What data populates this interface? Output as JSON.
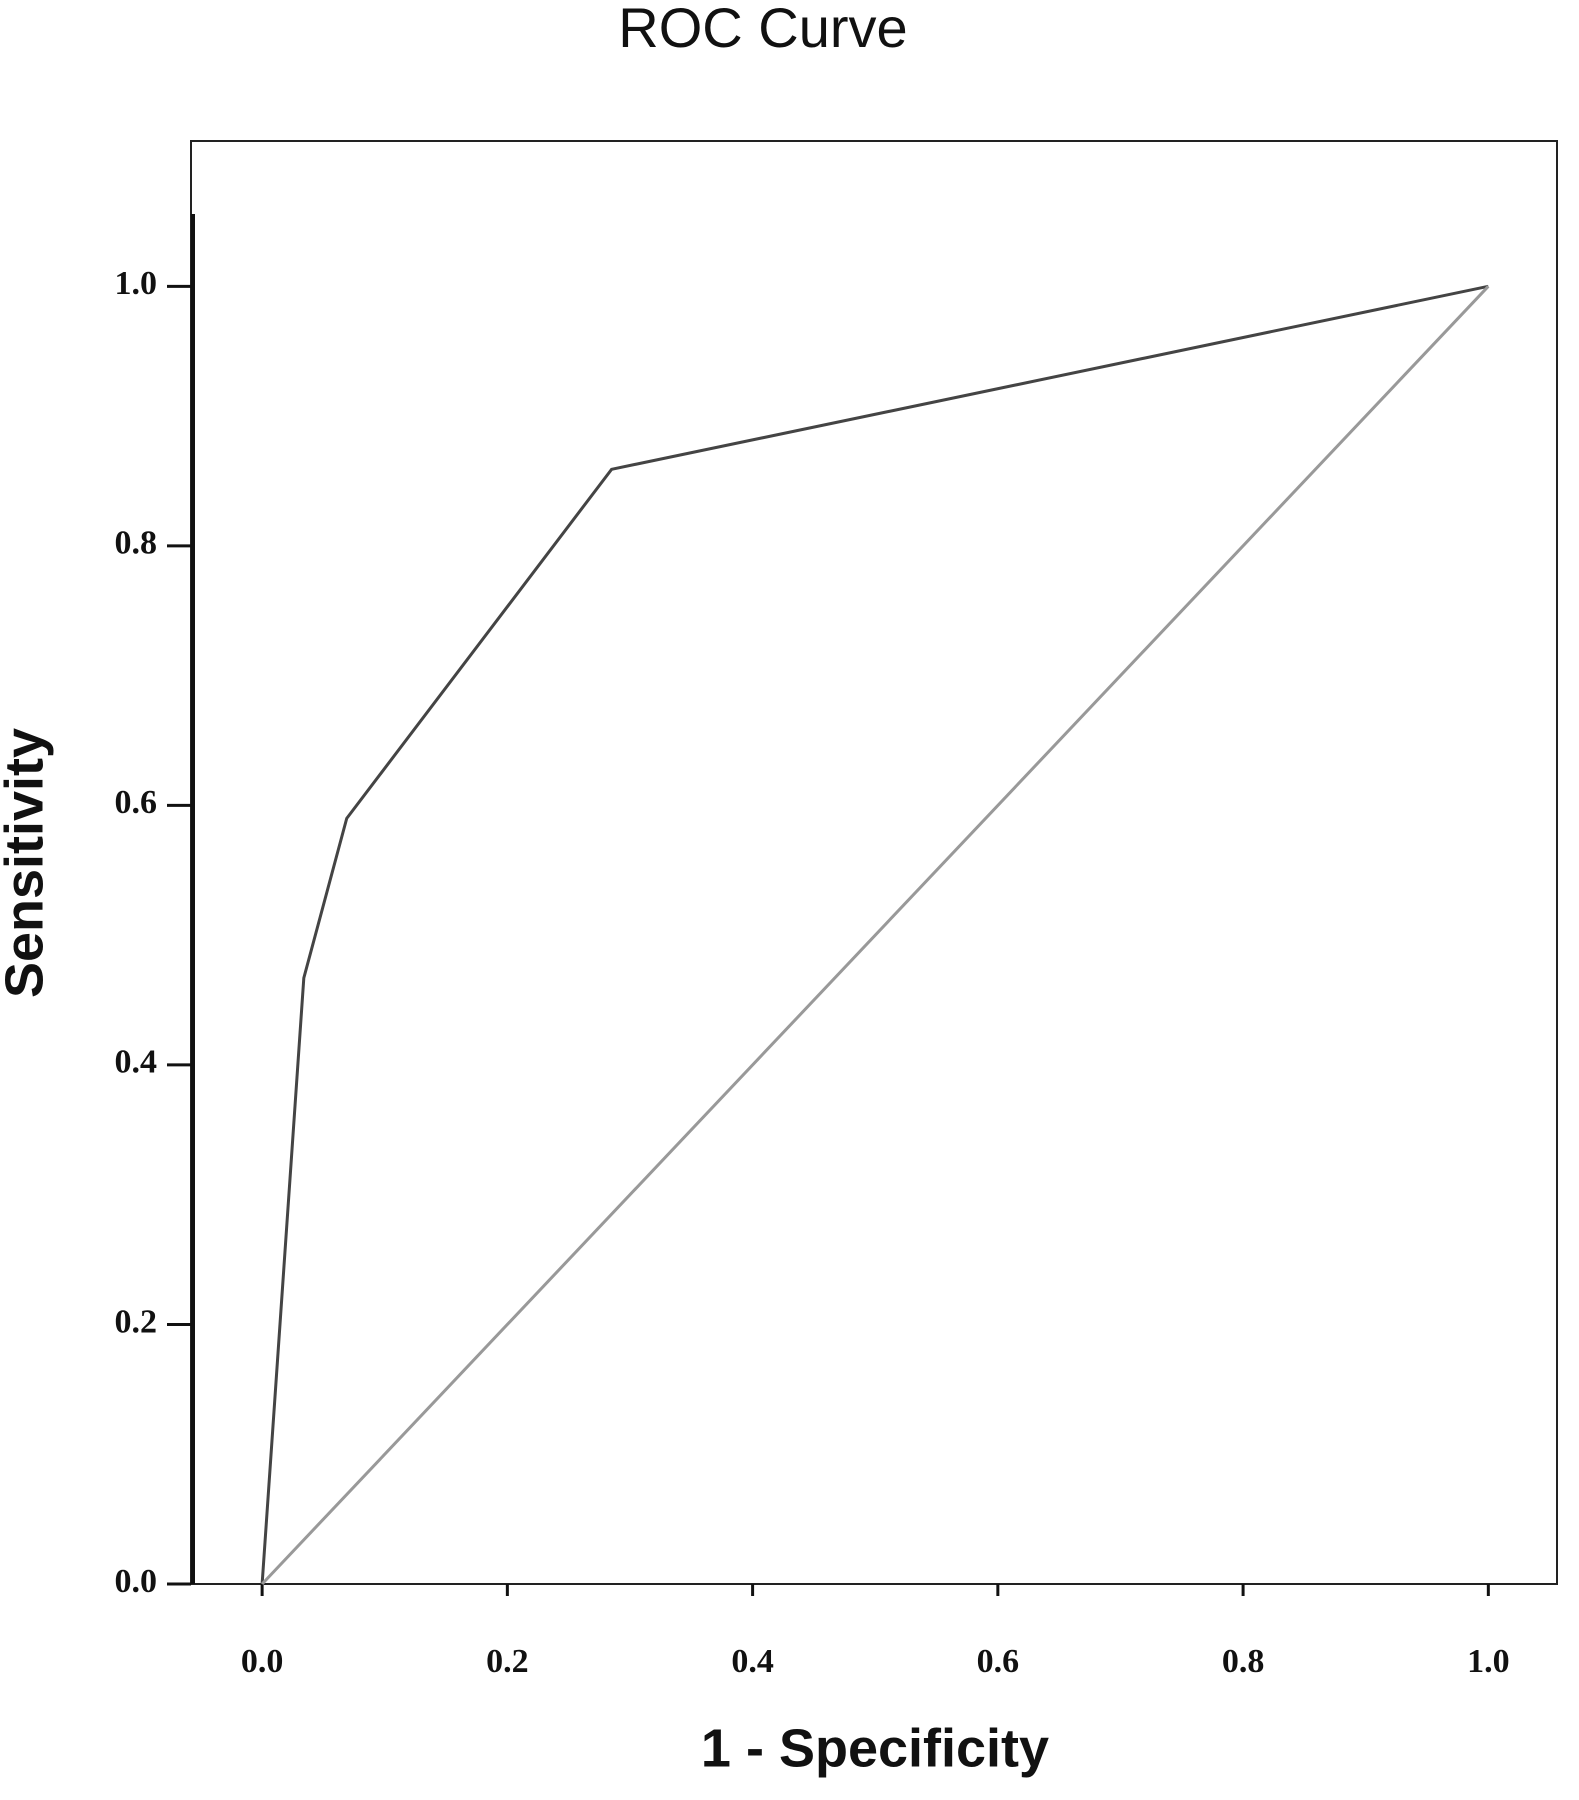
{
  "chart_data": {
    "type": "line",
    "title": "ROC Curve",
    "x_label": "1 - Specificity",
    "y_label": "Sensitivity",
    "series": [
      {
        "color": "#444444",
        "x": [
          0,
          0.034,
          0.069,
          0.285,
          1
        ],
        "values": [
          0,
          0.467,
          0.59,
          0.859,
          1
        ]
      },
      {
        "color": "#999999",
        "x": [
          0,
          1
        ],
        "values": [
          0,
          1
        ]
      }
    ],
    "xlim": [
      -0.058,
      1.056
    ],
    "ylim": [
      0,
      1.112
    ],
    "xticks": [
      {
        "value": 0,
        "label": "0.0"
      },
      0.2,
      0.4,
      0.6,
      0.8,
      {
        "value": 1,
        "label": "1.0"
      }
    ],
    "yticks": [
      {
        "value": 0,
        "label": "0.0"
      },
      0.2,
      0.4,
      0.6,
      0.8,
      {
        "value": 1,
        "label": "1.0"
      }
    ],
    "grid": false
  }
}
